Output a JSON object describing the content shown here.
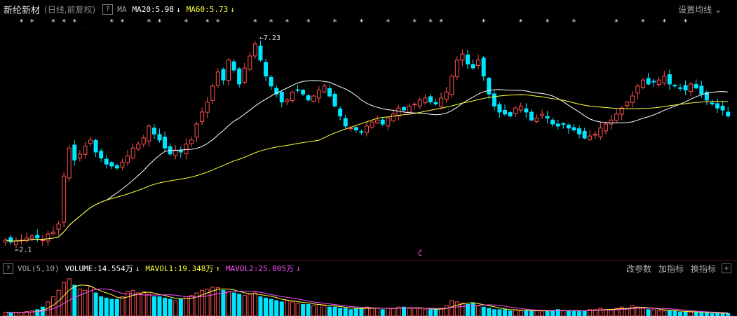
{
  "header": {
    "title": "新纶新材",
    "subtitle": "(日线,前复权)",
    "help_glyph": "?",
    "ma_label": "MA",
    "ma20_label": "MA20:5.98",
    "ma20_arrow": "↓",
    "ma60_label": "MA60:5.73",
    "ma60_arrow": "↓",
    "settings_label": "设置均线",
    "menu_glyph": "⌄"
  },
  "main_panel": {
    "high_label": "7.23",
    "low_label": "2.1",
    "cursor_glyph": "ĉ",
    "signal_glyph": "*",
    "colors": {
      "up": "#ff5050",
      "down": "#00e5ff",
      "ma20": "#ffffff",
      "ma60": "#ffff3c"
    }
  },
  "volume_panel": {
    "indicator_label": "VOL(5,10)",
    "volume_label": "VOLUME:14.554万",
    "volume_arrow": "↓",
    "mavol1_label": "MAVOL1:19.348万",
    "mavol1_arrow": "↑",
    "mavol2_label": "MAVOL2:25.005万",
    "mavol2_arrow": "↓",
    "btn_params": "改参数",
    "btn_add": "加指标",
    "btn_switch": "换指标",
    "plus_glyph": "+",
    "colors": {
      "mavol1": "#ffff3c",
      "mavol2": "#ff50ff"
    }
  },
  "chart_data": {
    "type": "candlestick",
    "ylim": [
      2.0,
      7.5
    ],
    "closes": [
      2.2,
      2.15,
      2.18,
      2.2,
      2.25,
      2.3,
      2.25,
      2.2,
      2.35,
      2.4,
      2.6,
      3.8,
      4.5,
      4.2,
      4.35,
      4.55,
      4.7,
      4.4,
      4.25,
      4.1,
      4.05,
      4.0,
      4.15,
      4.3,
      4.5,
      4.6,
      4.75,
      5.05,
      4.85,
      4.7,
      4.5,
      4.35,
      4.45,
      4.4,
      4.6,
      4.7,
      5.1,
      5.4,
      5.65,
      6.05,
      6.4,
      6.2,
      6.7,
      6.45,
      6.1,
      6.5,
      6.8,
      7.1,
      6.7,
      6.3,
      6.05,
      5.85,
      5.65,
      5.7,
      5.9,
      5.95,
      5.85,
      5.7,
      5.8,
      5.95,
      6.05,
      5.8,
      5.55,
      5.3,
      5.05,
      5.0,
      4.95,
      4.9,
      5.05,
      5.15,
      5.2,
      5.1,
      5.25,
      5.35,
      5.5,
      5.45,
      5.55,
      5.6,
      5.7,
      5.75,
      5.65,
      5.6,
      5.75,
      5.9,
      6.3,
      6.7,
      6.85,
      6.6,
      6.5,
      6.7,
      6.3,
      5.85,
      5.55,
      5.4,
      5.35,
      5.3,
      5.5,
      5.55,
      5.4,
      5.2,
      5.25,
      5.35,
      5.25,
      5.1,
      5.05,
      5.1,
      5.0,
      4.95,
      4.85,
      4.75,
      4.8,
      4.85,
      5.0,
      5.1,
      5.2,
      5.35,
      5.5,
      5.65,
      5.8,
      6.05,
      6.2,
      6.1,
      6.15,
      6.2,
      6.3,
      6.1,
      6.05,
      6.0,
      5.95,
      6.1,
      6.0,
      5.85,
      5.7,
      5.6,
      5.5,
      5.45,
      5.3
    ],
    "signals": [
      3,
      5,
      9,
      11,
      13,
      20,
      22,
      27,
      29,
      34,
      38,
      40,
      47,
      50,
      53,
      57,
      62,
      67,
      72,
      77,
      80,
      82,
      90,
      97,
      102,
      107,
      115,
      120,
      124,
      128
    ],
    "volume": {
      "ylim": [
        0,
        60
      ],
      "values": [
        6,
        5,
        6,
        5,
        7,
        8,
        10,
        14,
        22,
        30,
        40,
        52,
        58,
        48,
        42,
        40,
        46,
        36,
        30,
        28,
        26,
        26,
        30,
        38,
        40,
        36,
        38,
        34,
        30,
        30,
        28,
        26,
        24,
        26,
        30,
        32,
        36,
        40,
        42,
        45,
        44,
        40,
        38,
        36,
        34,
        32,
        34,
        36,
        30,
        28,
        26,
        24,
        22,
        24,
        22,
        20,
        18,
        18,
        16,
        18,
        16,
        14,
        14,
        12,
        12,
        10,
        12,
        12,
        14,
        12,
        12,
        10,
        12,
        12,
        14,
        14,
        12,
        12,
        12,
        10,
        10,
        10,
        12,
        16,
        24,
        22,
        20,
        18,
        20,
        16,
        14,
        12,
        10,
        10,
        10,
        8,
        10,
        8,
        8,
        8,
        8,
        8,
        8,
        8,
        10,
        8,
        8,
        8,
        8,
        8,
        10,
        10,
        12,
        10,
        10,
        12,
        14,
        12,
        16,
        14,
        12,
        10,
        10,
        8,
        8,
        8,
        8,
        6,
        6,
        6,
        6,
        5,
        5,
        4,
        4,
        4,
        4
      ]
    }
  }
}
